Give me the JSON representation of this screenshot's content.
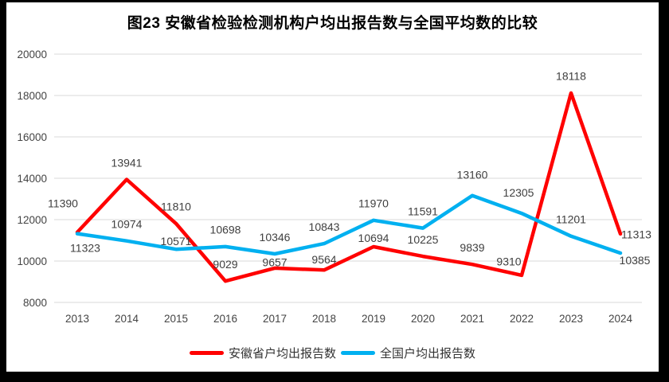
{
  "title": "图23 安徽省检验检测机构户均出报告数与全国平均数的比较",
  "chart_data": {
    "type": "line",
    "title": "图23 安徽省检验检测机构户均出报告数与全国平均数的比较",
    "categories": [
      "2013",
      "2014",
      "2015",
      "2016",
      "2017",
      "2018",
      "2019",
      "2020",
      "2021",
      "2022",
      "2023",
      "2024"
    ],
    "series": [
      {
        "name": "安徽省户均出报告数",
        "color": "#ff0000",
        "values": [
          11390,
          13941,
          11810,
          9029,
          9657,
          9564,
          10694,
          10225,
          9839,
          9310,
          18118,
          11313
        ]
      },
      {
        "name": "全国户均出报告数",
        "color": "#00b0f0",
        "values": [
          11323,
          10974,
          10571,
          10698,
          10346,
          10843,
          11970,
          11591,
          13160,
          12305,
          11201,
          10385
        ]
      }
    ],
    "xlabel": "",
    "ylabel": "",
    "ylim": [
      8000,
      20000
    ],
    "yticks": [
      8000,
      10000,
      12000,
      14000,
      16000,
      18000,
      20000
    ],
    "grid": true,
    "data_labels": true,
    "legend_position": "bottom"
  },
  "colors": {
    "frame": "#000000",
    "background": "#ffffff",
    "gridline": "#d9d9d9",
    "label_text": "#404040",
    "series_anhui": "#ff0000",
    "series_national": "#00b0f0"
  }
}
